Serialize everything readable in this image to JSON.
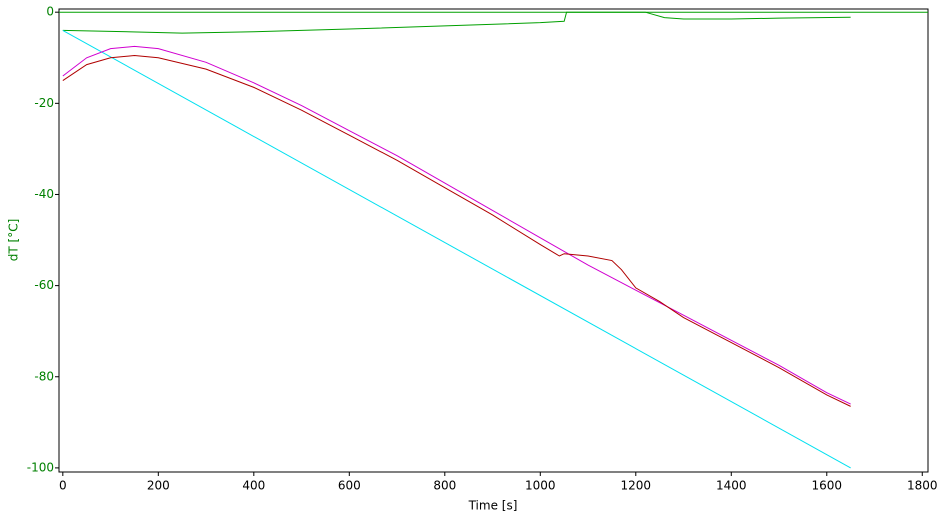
{
  "chart_data": {
    "type": "line",
    "x_label": "Time [s]",
    "y_label": "dT [°C]",
    "xlim": [
      -8,
      1812
    ],
    "ylim": [
      -100.9,
      0.7
    ],
    "xticks": [
      0,
      200,
      400,
      600,
      800,
      1000,
      1200,
      1400,
      1600,
      1800
    ],
    "yticks": [
      0,
      -20,
      -40,
      -60,
      -80,
      -100
    ],
    "series": [
      {
        "color": "#00a000",
        "x": [
          0,
          100,
          250,
          400,
          600,
          800,
          1000,
          1050,
          1055,
          1200,
          1220,
          1260,
          1300,
          1400,
          1500,
          1650
        ],
        "values": [
          -4,
          -4.2,
          -4.6,
          -4.3,
          -3.7,
          -3,
          -2.3,
          -2,
          0,
          0,
          0,
          -1.2,
          -1.5,
          -1.5,
          -1.3,
          -1.1
        ]
      },
      {
        "color": "#00e0f0",
        "x": [
          0,
          1650
        ],
        "values": [
          -4,
          -100
        ]
      },
      {
        "color": "#d000d0",
        "x": [
          0,
          50,
          100,
          150,
          200,
          300,
          400,
          500,
          600,
          700,
          800,
          900,
          1000,
          1100,
          1200,
          1300,
          1400,
          1500,
          1600,
          1650
        ],
        "values": [
          -14,
          -10,
          -8,
          -7.5,
          -8,
          -11,
          -15.5,
          -20.5,
          -26,
          -31.5,
          -37.5,
          -43.5,
          -49.5,
          -55.5,
          -61,
          -66.5,
          -72,
          -77.5,
          -83.5,
          -86
        ]
      },
      {
        "color": "#b00000",
        "x": [
          0,
          50,
          100,
          150,
          200,
          300,
          400,
          500,
          600,
          700,
          800,
          900,
          1000,
          1040,
          1050,
          1100,
          1150,
          1170,
          1200,
          1250,
          1300,
          1400,
          1500,
          1600,
          1650
        ],
        "values": [
          -15,
          -11.5,
          -10,
          -9.5,
          -10,
          -12.5,
          -16.5,
          -21.5,
          -27,
          -32.5,
          -38.5,
          -44.5,
          -51,
          -53.5,
          -53,
          -53.5,
          -54.5,
          -56.5,
          -60.5,
          -63.5,
          -67,
          -72.5,
          -78,
          -84,
          -86.5
        ]
      }
    ]
  }
}
